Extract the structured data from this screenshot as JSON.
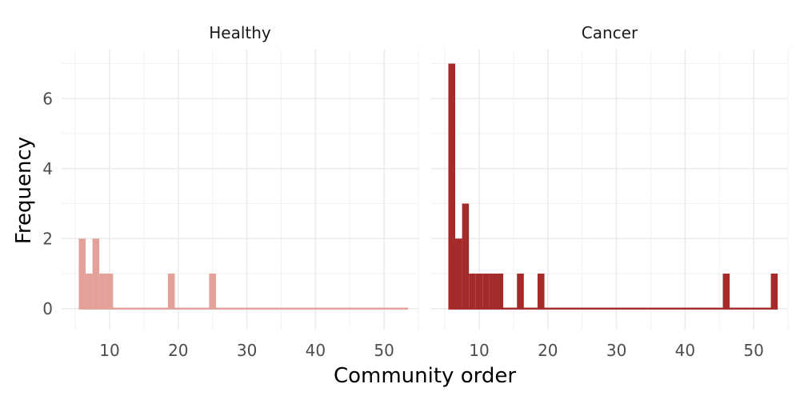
{
  "chart_data": {
    "type": "bar",
    "xlabel": "Community order",
    "ylabel": "Frequency",
    "ylim": [
      -0.6,
      7.4
    ],
    "xlim": [
      3,
      55
    ],
    "y_ticks": [
      0,
      2,
      4,
      6
    ],
    "x_ticks": [
      10,
      20,
      30,
      40,
      50
    ],
    "grid": true,
    "binwidth": 1,
    "panels": [
      {
        "name": "Healthy",
        "color": "#e3a19a",
        "bins": [
          {
            "x": 6,
            "count": 2
          },
          {
            "x": 7,
            "count": 1
          },
          {
            "x": 8,
            "count": 2
          },
          {
            "x": 9,
            "count": 1
          },
          {
            "x": 10,
            "count": 1
          },
          {
            "x": 19,
            "count": 1
          },
          {
            "x": 25,
            "count": 1
          }
        ],
        "range": [
          5.5,
          53.5
        ]
      },
      {
        "name": "Cancer",
        "color": "#a52a2a",
        "bins": [
          {
            "x": 6,
            "count": 7
          },
          {
            "x": 7,
            "count": 2
          },
          {
            "x": 8,
            "count": 3
          },
          {
            "x": 9,
            "count": 1
          },
          {
            "x": 10,
            "count": 1
          },
          {
            "x": 11,
            "count": 1
          },
          {
            "x": 12,
            "count": 1
          },
          {
            "x": 13,
            "count": 1
          },
          {
            "x": 16,
            "count": 1
          },
          {
            "x": 19,
            "count": 1
          },
          {
            "x": 46,
            "count": 1
          },
          {
            "x": 53,
            "count": 1
          }
        ],
        "range": [
          5.5,
          53.5
        ]
      }
    ]
  }
}
